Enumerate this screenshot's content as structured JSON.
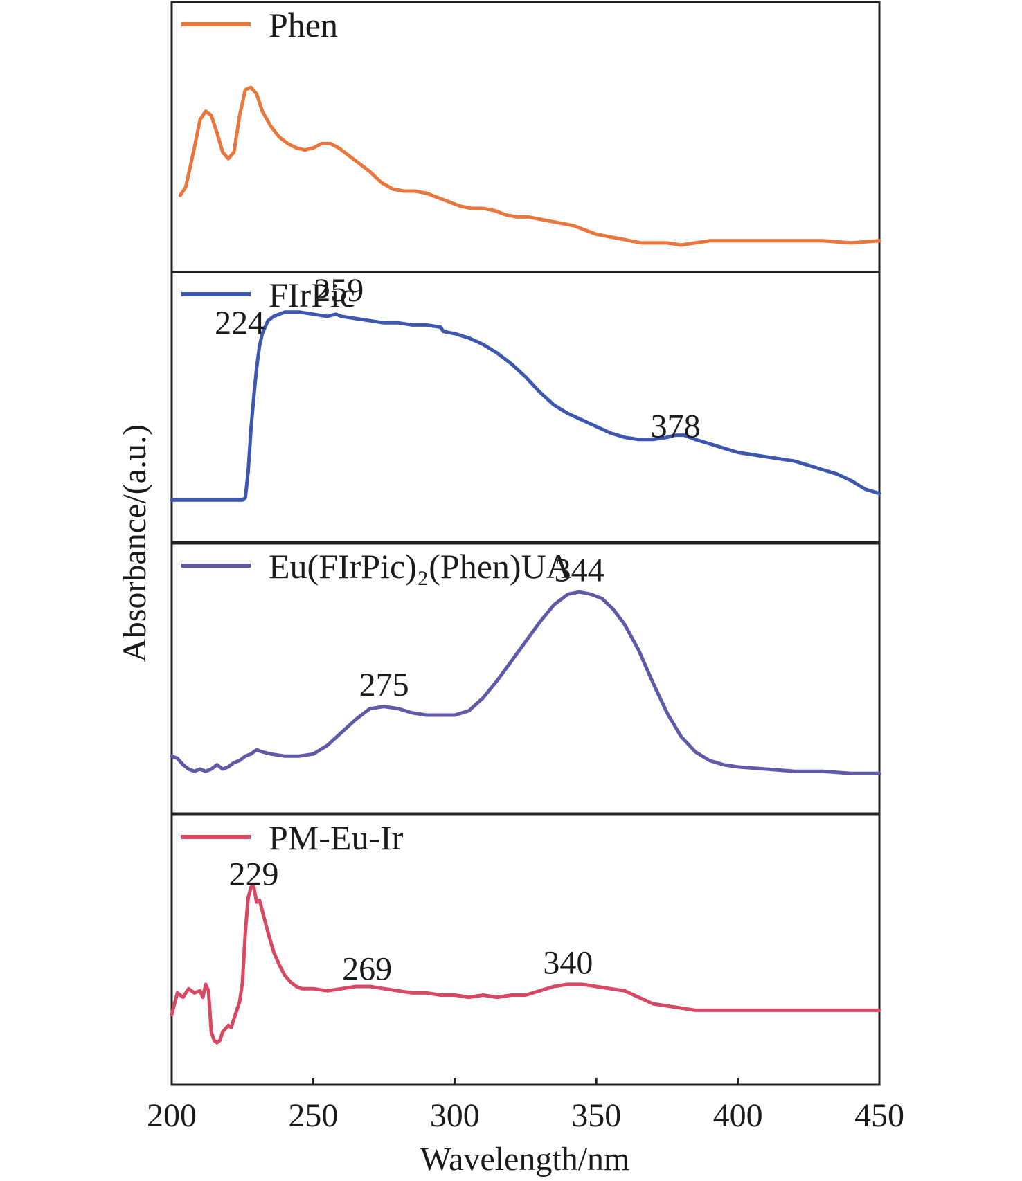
{
  "chart_data": {
    "type": "line",
    "xlabel": "Wavelength/nm",
    "ylabel": "Absorbance/(a.u.)",
    "xlim": [
      200,
      450
    ],
    "xticks": [
      200,
      250,
      300,
      350,
      400,
      450
    ],
    "grid": false,
    "legend_placement": "top-left",
    "panels": [
      {
        "name": "Phen",
        "color": "#e9773d",
        "ylim": [
          0,
          1
        ],
        "peaks": [],
        "points": [
          [
            203,
            0.23
          ],
          [
            205,
            0.27
          ],
          [
            208,
            0.45
          ],
          [
            210,
            0.58
          ],
          [
            212,
            0.62
          ],
          [
            214,
            0.6
          ],
          [
            216,
            0.52
          ],
          [
            218,
            0.43
          ],
          [
            220,
            0.4
          ],
          [
            222,
            0.43
          ],
          [
            224,
            0.6
          ],
          [
            226,
            0.72
          ],
          [
            228,
            0.73
          ],
          [
            230,
            0.7
          ],
          [
            232,
            0.62
          ],
          [
            235,
            0.55
          ],
          [
            238,
            0.5
          ],
          [
            241,
            0.47
          ],
          [
            244,
            0.45
          ],
          [
            247,
            0.44
          ],
          [
            250,
            0.45
          ],
          [
            253,
            0.47
          ],
          [
            256,
            0.47
          ],
          [
            259,
            0.45
          ],
          [
            262,
            0.42
          ],
          [
            266,
            0.38
          ],
          [
            270,
            0.34
          ],
          [
            274,
            0.29
          ],
          [
            278,
            0.26
          ],
          [
            282,
            0.25
          ],
          [
            286,
            0.25
          ],
          [
            290,
            0.24
          ],
          [
            294,
            0.22
          ],
          [
            298,
            0.2
          ],
          [
            302,
            0.18
          ],
          [
            306,
            0.17
          ],
          [
            310,
            0.17
          ],
          [
            314,
            0.16
          ],
          [
            318,
            0.14
          ],
          [
            322,
            0.13
          ],
          [
            326,
            0.13
          ],
          [
            330,
            0.12
          ],
          [
            334,
            0.11
          ],
          [
            338,
            0.1
          ],
          [
            342,
            0.09
          ],
          [
            346,
            0.07
          ],
          [
            350,
            0.05
          ],
          [
            354,
            0.04
          ],
          [
            358,
            0.03
          ],
          [
            362,
            0.02
          ],
          [
            366,
            0.01
          ],
          [
            370,
            0.01
          ],
          [
            375,
            0.01
          ],
          [
            380,
            0.0
          ],
          [
            385,
            0.01
          ],
          [
            390,
            0.02
          ],
          [
            395,
            0.02
          ],
          [
            400,
            0.02
          ],
          [
            410,
            0.02
          ],
          [
            420,
            0.02
          ],
          [
            430,
            0.02
          ],
          [
            440,
            0.01
          ],
          [
            450,
            0.02
          ]
        ]
      },
      {
        "name": "FIrPic",
        "color": "#3d57b0",
        "ylim": [
          0,
          1
        ],
        "peaks": [
          {
            "label": "259",
            "x": 259,
            "y": 0.99
          },
          {
            "label": "224",
            "x": 224,
            "y": 0.84
          },
          {
            "label": "378",
            "x": 378,
            "y": 0.36
          }
        ],
        "points": [
          [
            200,
            0.07
          ],
          [
            205,
            0.07
          ],
          [
            210,
            0.07
          ],
          [
            215,
            0.07
          ],
          [
            220,
            0.07
          ],
          [
            225,
            0.07
          ],
          [
            226,
            0.08
          ],
          [
            227,
            0.2
          ],
          [
            228,
            0.4
          ],
          [
            229,
            0.55
          ],
          [
            230,
            0.68
          ],
          [
            231,
            0.78
          ],
          [
            232,
            0.84
          ],
          [
            234,
            0.9
          ],
          [
            236,
            0.92
          ],
          [
            240,
            0.94
          ],
          [
            245,
            0.94
          ],
          [
            250,
            0.93
          ],
          [
            255,
            0.92
          ],
          [
            258,
            0.93
          ],
          [
            260,
            0.92
          ],
          [
            265,
            0.91
          ],
          [
            270,
            0.9
          ],
          [
            275,
            0.89
          ],
          [
            280,
            0.89
          ],
          [
            285,
            0.88
          ],
          [
            290,
            0.88
          ],
          [
            295,
            0.87
          ],
          [
            296,
            0.85
          ],
          [
            300,
            0.84
          ],
          [
            305,
            0.82
          ],
          [
            310,
            0.79
          ],
          [
            315,
            0.75
          ],
          [
            320,
            0.7
          ],
          [
            325,
            0.64
          ],
          [
            330,
            0.57
          ],
          [
            335,
            0.51
          ],
          [
            340,
            0.47
          ],
          [
            345,
            0.44
          ],
          [
            350,
            0.41
          ],
          [
            355,
            0.38
          ],
          [
            360,
            0.36
          ],
          [
            365,
            0.35
          ],
          [
            370,
            0.35
          ],
          [
            375,
            0.36
          ],
          [
            378,
            0.37
          ],
          [
            381,
            0.37
          ],
          [
            385,
            0.35
          ],
          [
            390,
            0.33
          ],
          [
            395,
            0.31
          ],
          [
            400,
            0.29
          ],
          [
            405,
            0.28
          ],
          [
            410,
            0.27
          ],
          [
            415,
            0.26
          ],
          [
            420,
            0.25
          ],
          [
            425,
            0.23
          ],
          [
            430,
            0.21
          ],
          [
            435,
            0.19
          ],
          [
            440,
            0.16
          ],
          [
            445,
            0.12
          ],
          [
            450,
            0.1
          ]
        ]
      },
      {
        "name": "Eu(FIrPic)₂(Phen)UA",
        "color": "#5e5aa8",
        "ylim": [
          0,
          1
        ],
        "peaks": [
          {
            "label": "344",
            "x": 344,
            "y": 0.95
          },
          {
            "label": "275",
            "x": 275,
            "y": 0.42
          }
        ],
        "points": [
          [
            200,
            0.14
          ],
          [
            202,
            0.13
          ],
          [
            204,
            0.1
          ],
          [
            206,
            0.08
          ],
          [
            208,
            0.07
          ],
          [
            210,
            0.08
          ],
          [
            212,
            0.07
          ],
          [
            214,
            0.08
          ],
          [
            216,
            0.1
          ],
          [
            218,
            0.08
          ],
          [
            220,
            0.09
          ],
          [
            222,
            0.11
          ],
          [
            224,
            0.12
          ],
          [
            226,
            0.14
          ],
          [
            228,
            0.15
          ],
          [
            230,
            0.17
          ],
          [
            232,
            0.16
          ],
          [
            235,
            0.15
          ],
          [
            240,
            0.14
          ],
          [
            245,
            0.14
          ],
          [
            250,
            0.15
          ],
          [
            255,
            0.19
          ],
          [
            260,
            0.25
          ],
          [
            265,
            0.31
          ],
          [
            270,
            0.36
          ],
          [
            275,
            0.37
          ],
          [
            280,
            0.36
          ],
          [
            285,
            0.34
          ],
          [
            290,
            0.33
          ],
          [
            295,
            0.33
          ],
          [
            300,
            0.33
          ],
          [
            305,
            0.35
          ],
          [
            310,
            0.41
          ],
          [
            315,
            0.49
          ],
          [
            320,
            0.58
          ],
          [
            325,
            0.67
          ],
          [
            330,
            0.76
          ],
          [
            335,
            0.84
          ],
          [
            340,
            0.89
          ],
          [
            344,
            0.9
          ],
          [
            348,
            0.89
          ],
          [
            352,
            0.87
          ],
          [
            356,
            0.82
          ],
          [
            360,
            0.75
          ],
          [
            365,
            0.63
          ],
          [
            370,
            0.48
          ],
          [
            375,
            0.34
          ],
          [
            380,
            0.23
          ],
          [
            385,
            0.16
          ],
          [
            390,
            0.12
          ],
          [
            395,
            0.1
          ],
          [
            400,
            0.09
          ],
          [
            410,
            0.08
          ],
          [
            420,
            0.07
          ],
          [
            430,
            0.07
          ],
          [
            440,
            0.06
          ],
          [
            450,
            0.06
          ]
        ]
      },
      {
        "name": "PM-Eu-Ir",
        "color": "#d94863",
        "ylim": [
          0,
          1
        ],
        "peaks": [
          {
            "label": "229",
            "x": 229,
            "y": 0.8
          },
          {
            "label": "269",
            "x": 269,
            "y": 0.36
          },
          {
            "label": "340",
            "x": 340,
            "y": 0.39
          }
        ],
        "points": [
          [
            200,
            0.2
          ],
          [
            202,
            0.3
          ],
          [
            204,
            0.28
          ],
          [
            206,
            0.32
          ],
          [
            208,
            0.3
          ],
          [
            210,
            0.31
          ],
          [
            211,
            0.28
          ],
          [
            212,
            0.34
          ],
          [
            213,
            0.31
          ],
          [
            214,
            0.12
          ],
          [
            215,
            0.08
          ],
          [
            216,
            0.07
          ],
          [
            217,
            0.08
          ],
          [
            218,
            0.12
          ],
          [
            220,
            0.15
          ],
          [
            221,
            0.14
          ],
          [
            222,
            0.18
          ],
          [
            224,
            0.26
          ],
          [
            225,
            0.35
          ],
          [
            226,
            0.58
          ],
          [
            227,
            0.74
          ],
          [
            228,
            0.79
          ],
          [
            229,
            0.79
          ],
          [
            230,
            0.72
          ],
          [
            231,
            0.73
          ],
          [
            232,
            0.68
          ],
          [
            234,
            0.58
          ],
          [
            236,
            0.49
          ],
          [
            238,
            0.43
          ],
          [
            240,
            0.38
          ],
          [
            242,
            0.35
          ],
          [
            244,
            0.33
          ],
          [
            246,
            0.32
          ],
          [
            250,
            0.32
          ],
          [
            255,
            0.31
          ],
          [
            260,
            0.32
          ],
          [
            265,
            0.33
          ],
          [
            270,
            0.33
          ],
          [
            275,
            0.32
          ],
          [
            280,
            0.31
          ],
          [
            285,
            0.3
          ],
          [
            290,
            0.3
          ],
          [
            295,
            0.29
          ],
          [
            300,
            0.29
          ],
          [
            305,
            0.28
          ],
          [
            310,
            0.29
          ],
          [
            315,
            0.28
          ],
          [
            320,
            0.29
          ],
          [
            325,
            0.29
          ],
          [
            330,
            0.31
          ],
          [
            335,
            0.33
          ],
          [
            340,
            0.34
          ],
          [
            345,
            0.34
          ],
          [
            350,
            0.33
          ],
          [
            355,
            0.32
          ],
          [
            360,
            0.31
          ],
          [
            365,
            0.28
          ],
          [
            370,
            0.25
          ],
          [
            375,
            0.24
          ],
          [
            380,
            0.23
          ],
          [
            385,
            0.22
          ],
          [
            390,
            0.22
          ],
          [
            400,
            0.22
          ],
          [
            410,
            0.22
          ],
          [
            420,
            0.22
          ],
          [
            430,
            0.22
          ],
          [
            440,
            0.22
          ],
          [
            450,
            0.22
          ]
        ]
      }
    ]
  }
}
